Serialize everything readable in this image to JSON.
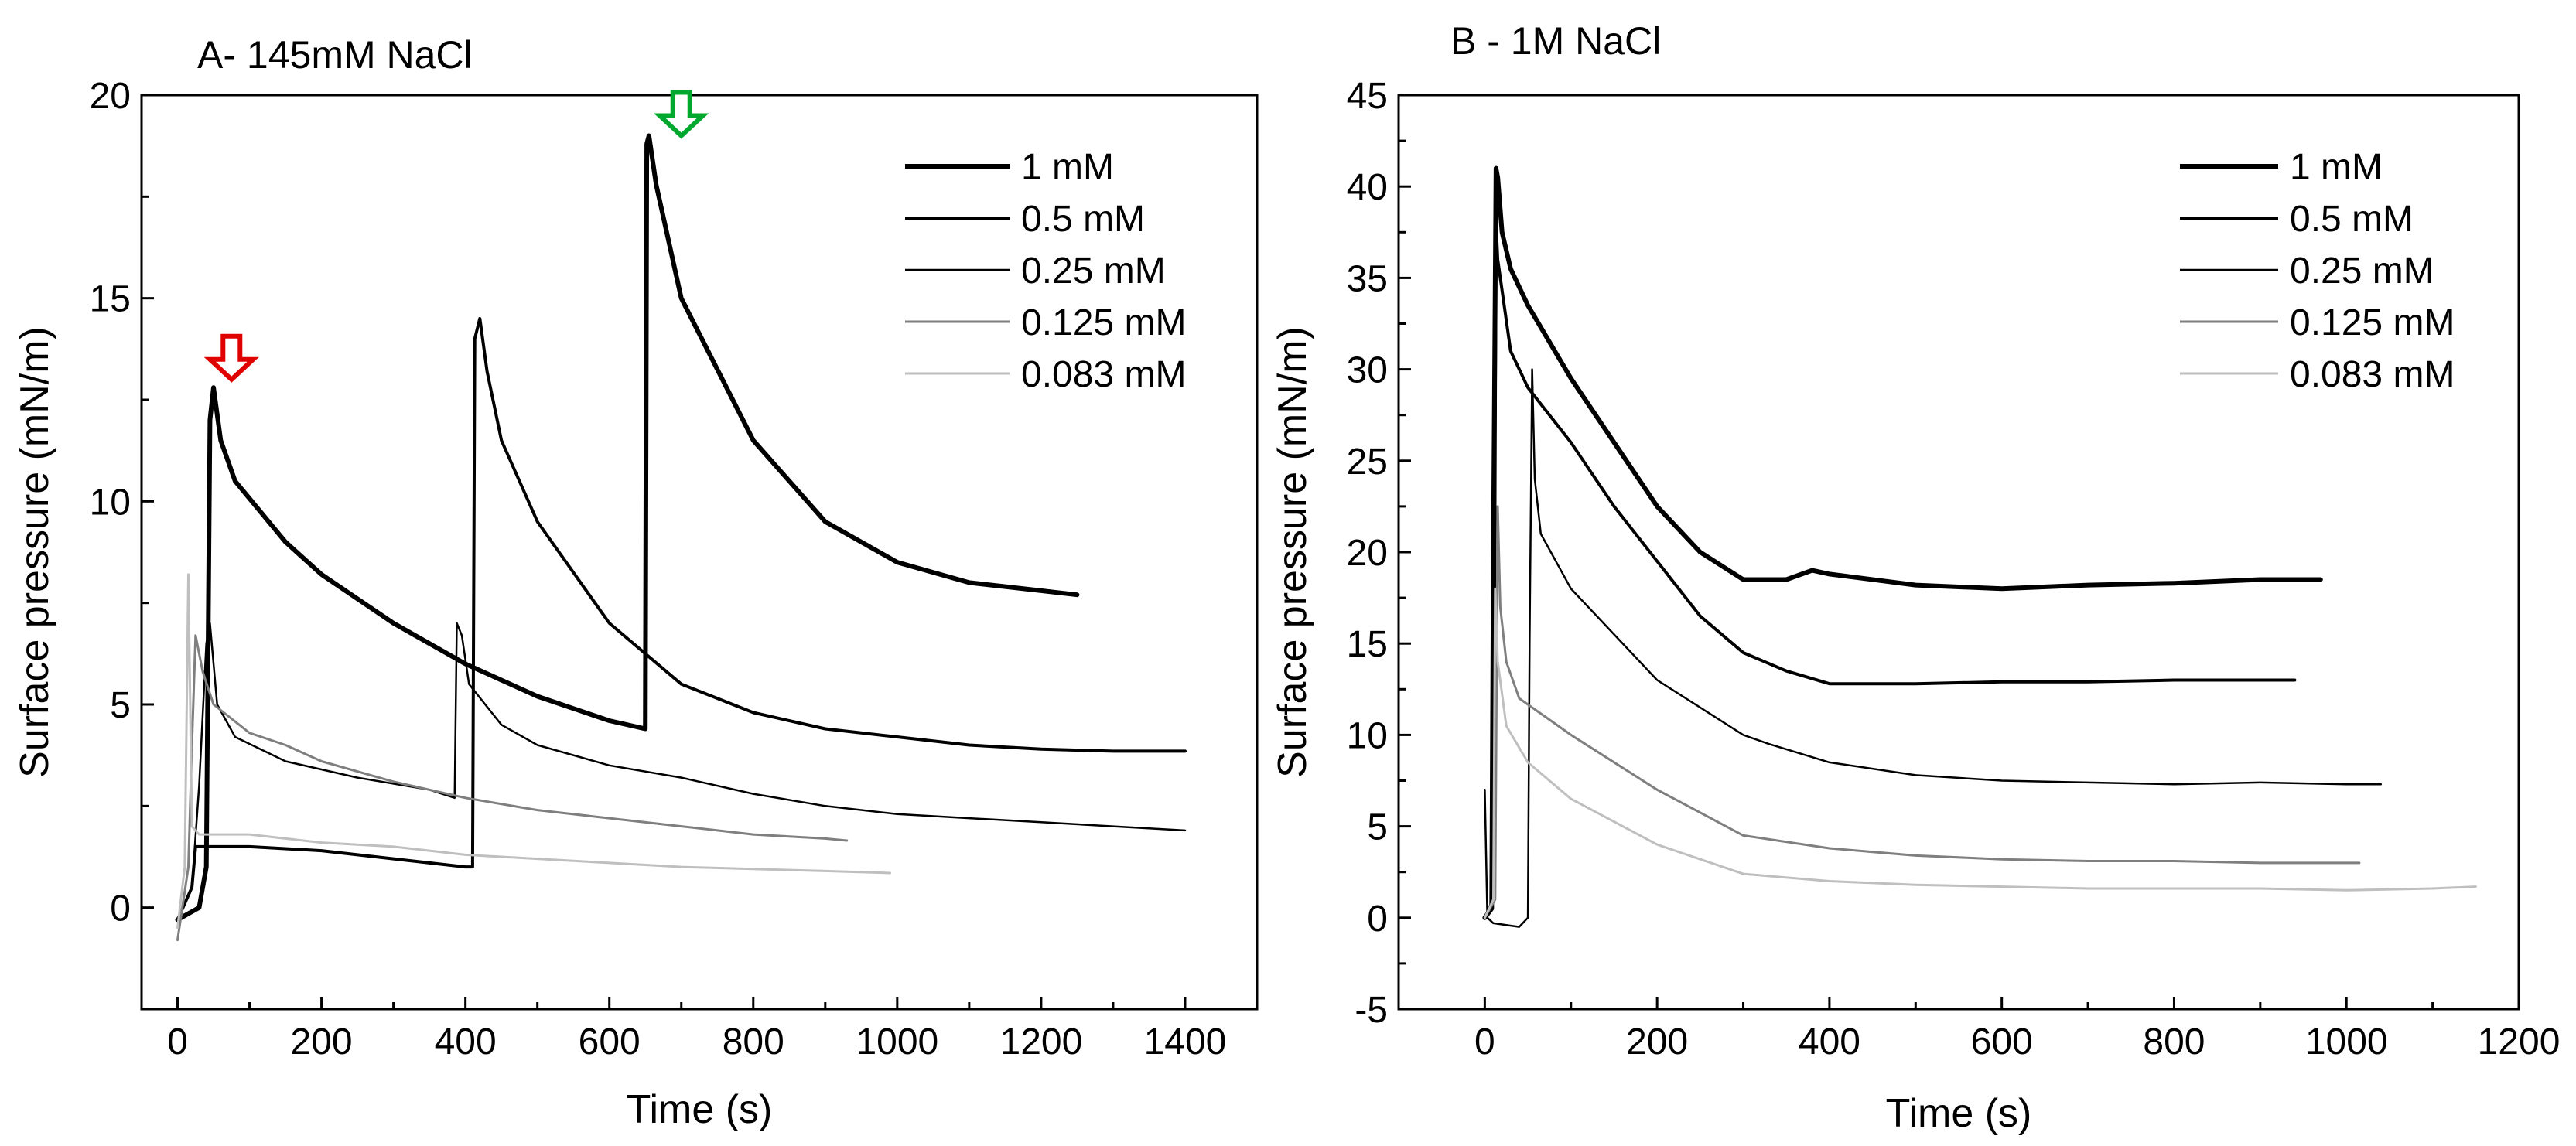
{
  "chart_data": [
    {
      "type": "line",
      "title": "A- 145mM NaCl",
      "xlabel": "Time (s)",
      "ylabel": "Surface pressure (mN/m)",
      "xlim": [
        -50,
        1500
      ],
      "ylim": [
        -2.5,
        20
      ],
      "xticks": [
        0,
        200,
        400,
        600,
        800,
        1000,
        1200,
        1400
      ],
      "yticks": [
        0,
        5,
        10,
        15,
        20
      ],
      "xtick_labels": [
        "0",
        "200",
        "400",
        "600",
        "800",
        "1000",
        "1200",
        "1400"
      ],
      "ytick_labels": [
        "0",
        "5",
        "10",
        "15",
        "20"
      ],
      "legend_position": "top-right",
      "annotations": [
        {
          "kind": "arrow-down",
          "color": "#e00000",
          "x": 75,
          "y": 13.0
        },
        {
          "kind": "arrow-down",
          "color": "#00a830",
          "x": 700,
          "y": 19.0
        }
      ],
      "series": [
        {
          "name": "1 mM",
          "color": "#000000",
          "width": 6,
          "points": [
            [
              0,
              -0.3
            ],
            [
              30,
              0
            ],
            [
              40,
              1
            ],
            [
              45,
              12
            ],
            [
              50,
              12.8
            ],
            [
              60,
              11.5
            ],
            [
              80,
              10.5
            ],
            [
              150,
              9
            ],
            [
              200,
              8.2
            ],
            [
              300,
              7
            ],
            [
              400,
              6
            ],
            [
              500,
              5.2
            ],
            [
              600,
              4.6
            ],
            [
              650,
              4.4
            ],
            [
              652,
              18.8
            ],
            [
              655,
              19
            ],
            [
              665,
              17.8
            ],
            [
              700,
              15
            ],
            [
              800,
              11.5
            ],
            [
              900,
              9.5
            ],
            [
              1000,
              8.5
            ],
            [
              1100,
              8
            ],
            [
              1200,
              7.8
            ],
            [
              1250,
              7.7
            ]
          ]
        },
        {
          "name": "0.5 mM",
          "color": "#000000",
          "width": 4,
          "points": [
            [
              0,
              -0.3
            ],
            [
              20,
              0.5
            ],
            [
              25,
              1.5
            ],
            [
              100,
              1.5
            ],
            [
              200,
              1.4
            ],
            [
              300,
              1.2
            ],
            [
              400,
              1.0
            ],
            [
              410,
              1.0
            ],
            [
              413,
              14
            ],
            [
              420,
              14.5
            ],
            [
              430,
              13.2
            ],
            [
              450,
              11.5
            ],
            [
              500,
              9.5
            ],
            [
              600,
              7
            ],
            [
              700,
              5.5
            ],
            [
              800,
              4.8
            ],
            [
              900,
              4.4
            ],
            [
              1000,
              4.2
            ],
            [
              1100,
              4
            ],
            [
              1200,
              3.9
            ],
            [
              1300,
              3.85
            ],
            [
              1400,
              3.85
            ]
          ]
        },
        {
          "name": "0.25 mM",
          "color": "#000000",
          "width": 2.5,
          "points": [
            [
              0,
              -0.3
            ],
            [
              20,
              0.5
            ],
            [
              30,
              3
            ],
            [
              40,
              6.5
            ],
            [
              45,
              7
            ],
            [
              55,
              5
            ],
            [
              80,
              4.2
            ],
            [
              150,
              3.6
            ],
            [
              250,
              3.2
            ],
            [
              350,
              2.9
            ],
            [
              385,
              2.7
            ],
            [
              388,
              7
            ],
            [
              395,
              6.7
            ],
            [
              405,
              5.5
            ],
            [
              450,
              4.5
            ],
            [
              500,
              4
            ],
            [
              600,
              3.5
            ],
            [
              700,
              3.2
            ],
            [
              800,
              2.8
            ],
            [
              900,
              2.5
            ],
            [
              1000,
              2.3
            ],
            [
              1100,
              2.2
            ],
            [
              1200,
              2.1
            ],
            [
              1300,
              2
            ],
            [
              1400,
              1.9
            ]
          ]
        },
        {
          "name": "0.125 mM",
          "color": "#7f7f7f",
          "width": 3,
          "points": [
            [
              0,
              -0.8
            ],
            [
              15,
              1
            ],
            [
              20,
              4
            ],
            [
              25,
              6.7
            ],
            [
              35,
              5.8
            ],
            [
              50,
              5
            ],
            [
              100,
              4.3
            ],
            [
              150,
              4
            ],
            [
              200,
              3.6
            ],
            [
              300,
              3.1
            ],
            [
              400,
              2.7
            ],
            [
              500,
              2.4
            ],
            [
              600,
              2.2
            ],
            [
              700,
              2
            ],
            [
              800,
              1.8
            ],
            [
              900,
              1.7
            ],
            [
              930,
              1.65
            ]
          ]
        },
        {
          "name": "0.083 mM",
          "color": "#bfbfbf",
          "width": 3,
          "points": [
            [
              0,
              -0.5
            ],
            [
              10,
              1
            ],
            [
              15,
              8.2
            ],
            [
              20,
              2
            ],
            [
              30,
              1.8
            ],
            [
              100,
              1.8
            ],
            [
              200,
              1.6
            ],
            [
              300,
              1.5
            ],
            [
              400,
              1.3
            ],
            [
              500,
              1.2
            ],
            [
              600,
              1.1
            ],
            [
              700,
              1.0
            ],
            [
              800,
              0.95
            ],
            [
              900,
              0.9
            ],
            [
              990,
              0.85
            ]
          ]
        }
      ]
    },
    {
      "type": "line",
      "title": "B - 1M NaCl",
      "xlabel": "Time (s)",
      "ylabel": "Surface  pressure (mN/m)",
      "xlim": [
        -100,
        1200
      ],
      "ylim": [
        -5,
        45
      ],
      "xticks": [
        0,
        200,
        400,
        600,
        800,
        1000,
        1200
      ],
      "yticks": [
        -5,
        0,
        5,
        10,
        15,
        20,
        25,
        30,
        35,
        40,
        45
      ],
      "xtick_labels": [
        "0",
        "200",
        "400",
        "600",
        "800",
        "1000",
        "1200"
      ],
      "ytick_labels": [
        "-5",
        "0",
        "5",
        "10",
        "15",
        "20",
        "25",
        "30",
        "35",
        "40",
        "45"
      ],
      "legend_position": "top-right",
      "series": [
        {
          "name": "1 mM",
          "color": "#000000",
          "width": 6,
          "points": [
            [
              0,
              0
            ],
            [
              8,
              0.5
            ],
            [
              10,
              20
            ],
            [
              13,
              41
            ],
            [
              15,
              40.5
            ],
            [
              20,
              37.5
            ],
            [
              30,
              35.5
            ],
            [
              50,
              33.5
            ],
            [
              100,
              29.5
            ],
            [
              150,
              26
            ],
            [
              200,
              22.5
            ],
            [
              250,
              20
            ],
            [
              300,
              18.5
            ],
            [
              350,
              18.5
            ],
            [
              380,
              19
            ],
            [
              400,
              18.8
            ],
            [
              500,
              18.2
            ],
            [
              600,
              18
            ],
            [
              700,
              18.2
            ],
            [
              800,
              18.3
            ],
            [
              900,
              18.5
            ],
            [
              970,
              18.5
            ]
          ]
        },
        {
          "name": "0.5 mM",
          "color": "#000000",
          "width": 4,
          "points": [
            [
              0,
              0
            ],
            [
              10,
              1
            ],
            [
              13,
              38
            ],
            [
              15,
              36
            ],
            [
              30,
              31
            ],
            [
              50,
              29
            ],
            [
              100,
              26
            ],
            [
              150,
              22.5
            ],
            [
              200,
              19.5
            ],
            [
              250,
              16.5
            ],
            [
              300,
              14.5
            ],
            [
              350,
              13.5
            ],
            [
              400,
              12.8
            ],
            [
              500,
              12.8
            ],
            [
              600,
              12.9
            ],
            [
              700,
              12.9
            ],
            [
              800,
              13
            ],
            [
              900,
              13
            ],
            [
              940,
              13
            ]
          ]
        },
        {
          "name": "0.25 mM",
          "color": "#000000",
          "width": 2.5,
          "points": [
            [
              0,
              7
            ],
            [
              3,
              0
            ],
            [
              10,
              -0.3
            ],
            [
              40,
              -0.5
            ],
            [
              50,
              0
            ],
            [
              52,
              15
            ],
            [
              55,
              30
            ],
            [
              58,
              24
            ],
            [
              65,
              21
            ],
            [
              100,
              18
            ],
            [
              150,
              15.5
            ],
            [
              200,
              13
            ],
            [
              300,
              10
            ],
            [
              330,
              9.5
            ],
            [
              400,
              8.5
            ],
            [
              500,
              7.8
            ],
            [
              600,
              7.5
            ],
            [
              700,
              7.4
            ],
            [
              800,
              7.3
            ],
            [
              900,
              7.4
            ],
            [
              1000,
              7.3
            ],
            [
              1040,
              7.3
            ]
          ]
        },
        {
          "name": "0.125 mM",
          "color": "#7f7f7f",
          "width": 3,
          "points": [
            [
              0,
              0
            ],
            [
              12,
              1
            ],
            [
              15,
              22.5
            ],
            [
              18,
              17
            ],
            [
              25,
              14
            ],
            [
              40,
              12
            ],
            [
              100,
              10
            ],
            [
              200,
              7
            ],
            [
              300,
              4.5
            ],
            [
              400,
              3.8
            ],
            [
              500,
              3.4
            ],
            [
              600,
              3.2
            ],
            [
              700,
              3.1
            ],
            [
              800,
              3.1
            ],
            [
              900,
              3
            ],
            [
              1000,
              3
            ],
            [
              1015,
              3
            ]
          ]
        },
        {
          "name": "0.083 mM",
          "color": "#bfbfbf",
          "width": 3,
          "points": [
            [
              0,
              0
            ],
            [
              10,
              1
            ],
            [
              12,
              18
            ],
            [
              15,
              14
            ],
            [
              25,
              10.5
            ],
            [
              50,
              8.5
            ],
            [
              100,
              6.5
            ],
            [
              200,
              4
            ],
            [
              300,
              2.4
            ],
            [
              400,
              2
            ],
            [
              500,
              1.8
            ],
            [
              600,
              1.7
            ],
            [
              700,
              1.6
            ],
            [
              800,
              1.6
            ],
            [
              900,
              1.6
            ],
            [
              1000,
              1.5
            ],
            [
              1100,
              1.6
            ],
            [
              1150,
              1.7
            ]
          ]
        }
      ]
    }
  ]
}
